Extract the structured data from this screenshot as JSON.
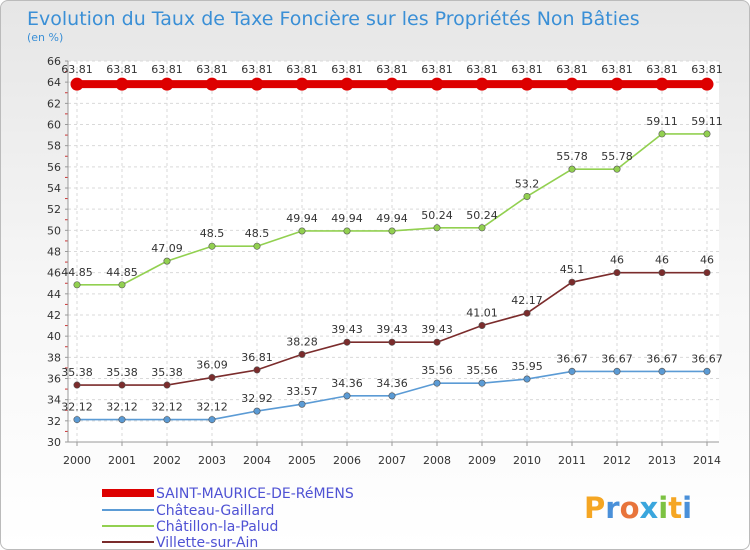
{
  "chart_data": {
    "type": "line",
    "title": "Evolution du Taux de Taxe Foncière sur les Propriétés Non Bâties",
    "subtitle": "(en %)",
    "x": [
      "2000",
      "2001",
      "2002",
      "2003",
      "2004",
      "2005",
      "2006",
      "2007",
      "2008",
      "2009",
      "2010",
      "2011",
      "2012",
      "2013",
      "2014"
    ],
    "ylim": [
      30,
      66
    ],
    "yticks": [
      30,
      32,
      34,
      36,
      38,
      40,
      42,
      44,
      46,
      48,
      50,
      52,
      54,
      56,
      58,
      60,
      62,
      64,
      66
    ],
    "grid": true,
    "legend_position": "bottom-left",
    "series": [
      {
        "name": "SAINT-MAURICE-DE-RéMENS",
        "color": "#dd0000",
        "values": [
          63.81,
          63.81,
          63.81,
          63.81,
          63.81,
          63.81,
          63.81,
          63.81,
          63.81,
          63.81,
          63.81,
          63.81,
          63.81,
          63.81,
          63.81
        ],
        "labels": [
          "63.81",
          "63.81",
          "63.81",
          "63.81",
          "63.81",
          "63.81",
          "63.81",
          "63.81",
          "63.81",
          "63.81",
          "63.81",
          "63.81",
          "63.81",
          "63.81",
          "63.81"
        ]
      },
      {
        "name": "Château-Gaillard",
        "color": "#5b9bd5",
        "values": [
          32.12,
          32.12,
          32.12,
          32.12,
          32.92,
          33.57,
          34.36,
          34.36,
          35.56,
          35.56,
          35.95,
          36.67,
          36.67,
          36.67,
          36.67
        ],
        "labels": [
          "32.12",
          "32.12",
          "32.12",
          "32.12",
          "32.92",
          "33.57",
          "34.36",
          "34.36",
          "35.56",
          "35.56",
          "35.95",
          "36.67",
          "36.67",
          "36.67",
          "36.67"
        ]
      },
      {
        "name": "Châtillon-la-Palud",
        "color": "#92d050",
        "values": [
          44.85,
          44.85,
          47.09,
          48.5,
          48.5,
          49.94,
          49.94,
          49.94,
          50.24,
          50.24,
          53.2,
          55.78,
          55.78,
          59.11,
          59.11
        ],
        "labels": [
          "44.85",
          "44.85",
          "47.09",
          "48.5",
          "48.5",
          "49.94",
          "49.94",
          "49.94",
          "50.24",
          "50.24",
          "53.2",
          "55.78",
          "55.78",
          "59.11",
          "59.11"
        ]
      },
      {
        "name": "Villette-sur-Ain",
        "color": "#7b2c2c",
        "values": [
          35.38,
          35.38,
          35.38,
          36.09,
          36.81,
          38.28,
          39.43,
          39.43,
          39.43,
          41.01,
          42.17,
          45.1,
          46,
          46,
          46
        ],
        "labels": [
          "35.38",
          "35.38",
          "35.38",
          "36.09",
          "36.81",
          "38.28",
          "39.43",
          "39.43",
          "39.43",
          "41.01",
          "42.17",
          "45.1",
          "46",
          "46",
          "46"
        ]
      }
    ]
  },
  "brand": {
    "letters": [
      "P",
      "r",
      "o",
      "x",
      "i",
      "t",
      "i"
    ]
  }
}
